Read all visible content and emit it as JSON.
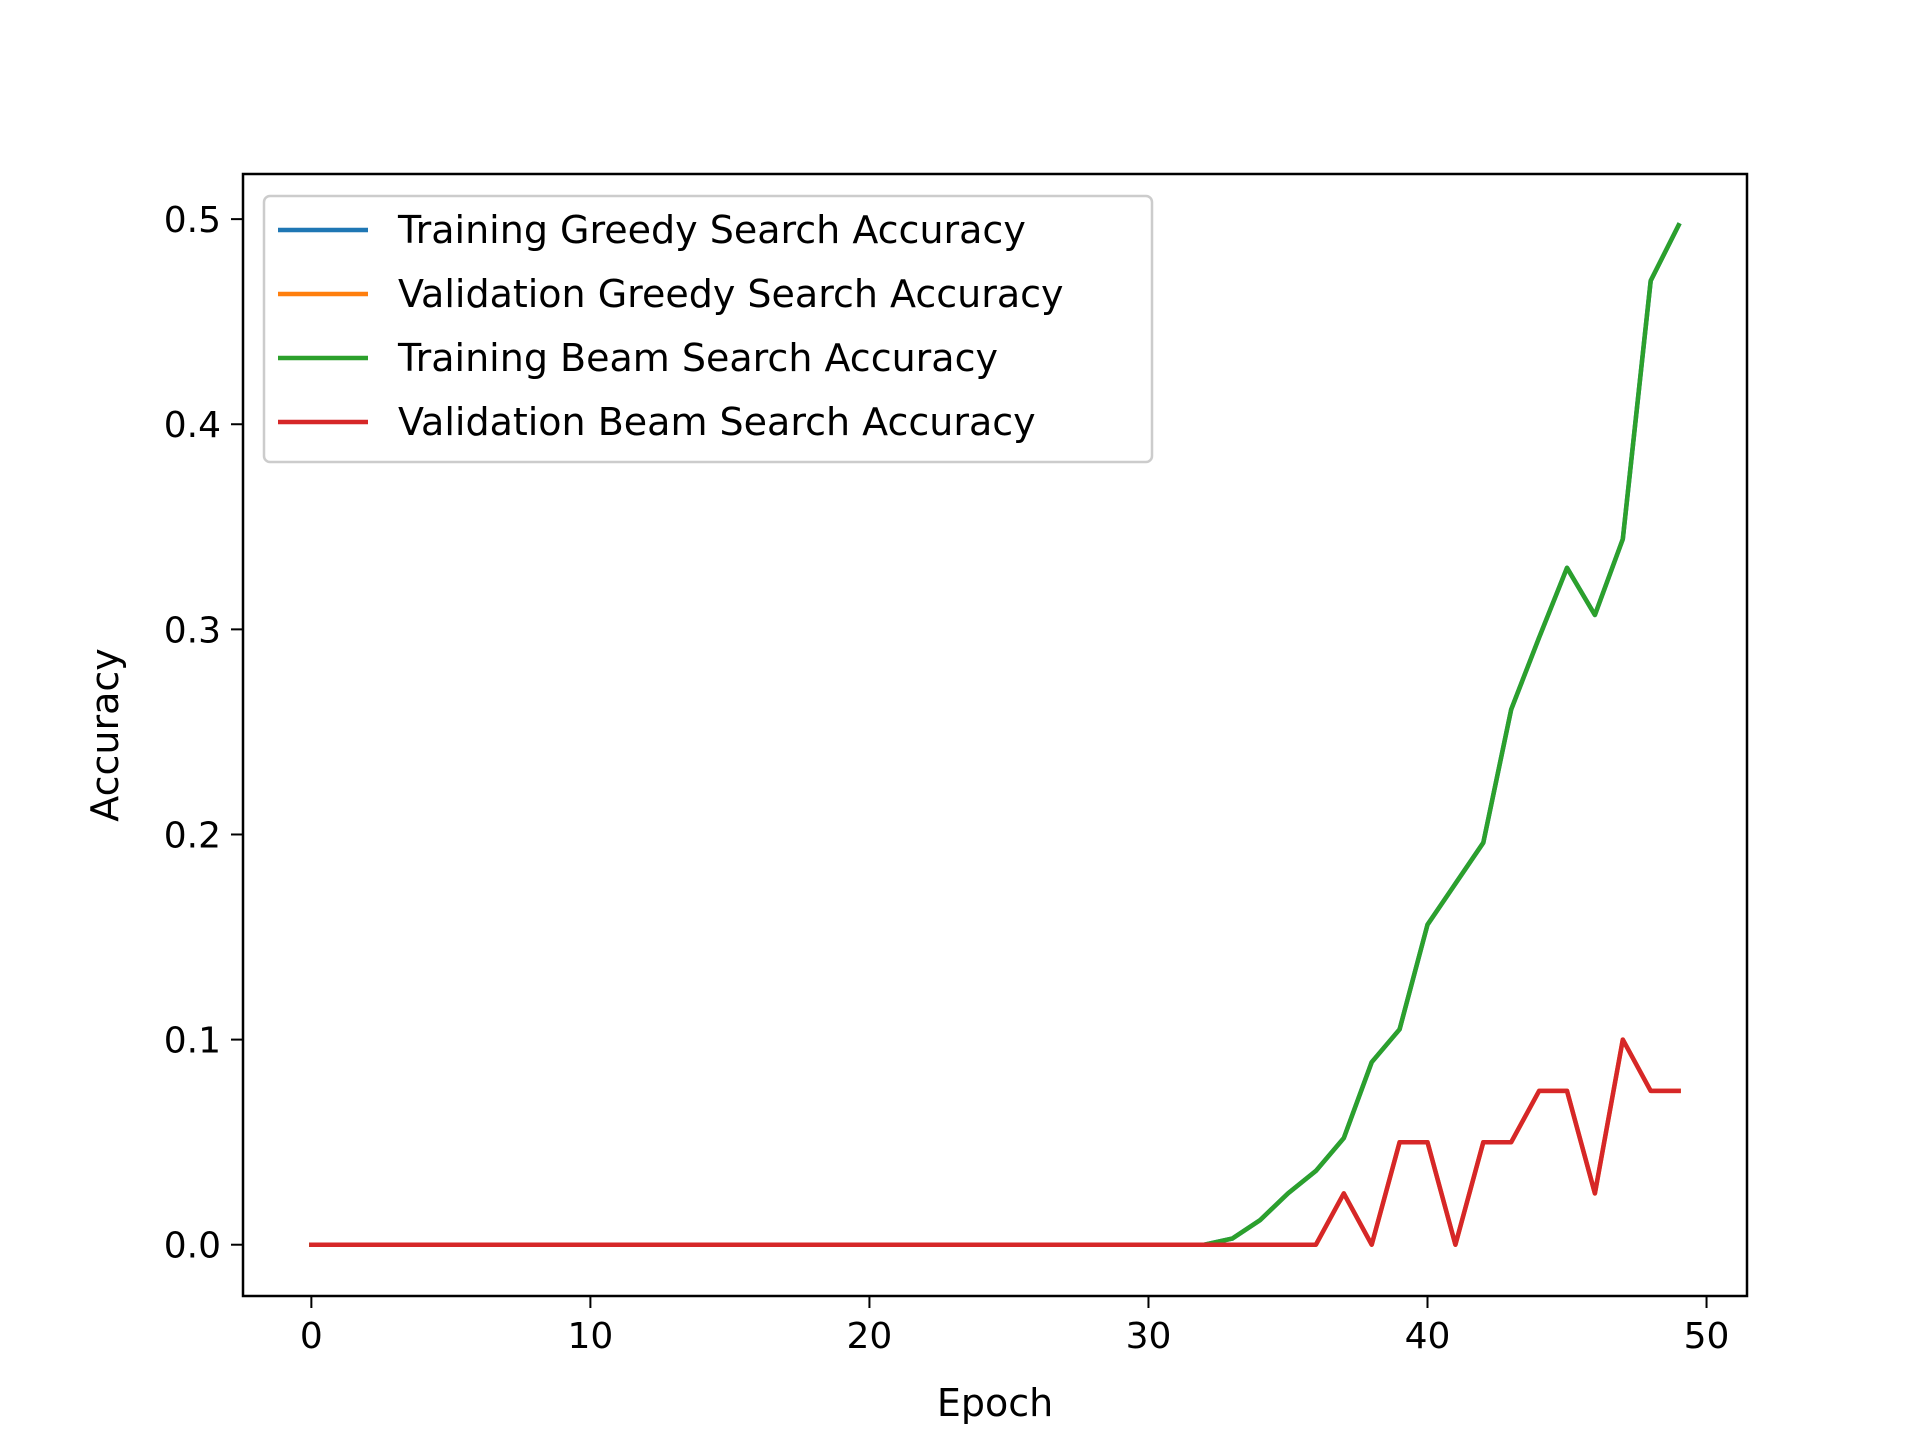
{
  "chart_data": {
    "type": "line",
    "title": "",
    "xlabel": "Epoch",
    "ylabel": "Accuracy",
    "xlim": [
      -2.45,
      51.45
    ],
    "ylim": [
      -0.025,
      0.522
    ],
    "xticks": [
      0,
      10,
      20,
      30,
      40,
      50
    ],
    "yticks": [
      0.0,
      0.1,
      0.2,
      0.3,
      0.4,
      0.5
    ],
    "xtick_labels": [
      "0",
      "10",
      "20",
      "30",
      "40",
      "50"
    ],
    "ytick_labels": [
      "0.0",
      "0.1",
      "0.2",
      "0.3",
      "0.4",
      "0.5"
    ],
    "grid": false,
    "legend_position": "top-left",
    "x": [
      0,
      1,
      2,
      3,
      4,
      5,
      6,
      7,
      8,
      9,
      10,
      11,
      12,
      13,
      14,
      15,
      16,
      17,
      18,
      19,
      20,
      21,
      22,
      23,
      24,
      25,
      26,
      27,
      28,
      29,
      30,
      31,
      32,
      33,
      34,
      35,
      36,
      37,
      38,
      39,
      40,
      41,
      42,
      43,
      44,
      45,
      46,
      47,
      48,
      49
    ],
    "series": [
      {
        "name": "Training Greedy Search Accuracy",
        "color": "#1f77b4",
        "values": [
          0,
          0,
          0,
          0,
          0,
          0,
          0,
          0,
          0,
          0,
          0,
          0,
          0,
          0,
          0,
          0,
          0,
          0,
          0,
          0,
          0,
          0,
          0,
          0,
          0,
          0,
          0,
          0,
          0,
          0,
          0,
          0,
          0,
          0.003,
          0.012,
          0.025,
          0.036,
          0.052,
          0.089,
          0.105,
          0.156,
          0.176,
          0.196,
          0.261,
          0.296,
          0.33,
          0.307,
          0.344,
          0.47,
          0.497
        ]
      },
      {
        "name": "Validation Greedy Search Accuracy",
        "color": "#ff7f0e",
        "values": [
          0,
          0,
          0,
          0,
          0,
          0,
          0,
          0,
          0,
          0,
          0,
          0,
          0,
          0,
          0,
          0,
          0,
          0,
          0,
          0,
          0,
          0,
          0,
          0,
          0,
          0,
          0,
          0,
          0,
          0,
          0,
          0,
          0,
          0,
          0,
          0,
          0,
          0.025,
          0,
          0.05,
          0.05,
          0,
          0.05,
          0.05,
          0.075,
          0.075,
          0.025,
          0.1,
          0.075,
          0.075
        ]
      },
      {
        "name": "Training Beam Search Accuracy",
        "color": "#2ca02c",
        "values": [
          0,
          0,
          0,
          0,
          0,
          0,
          0,
          0,
          0,
          0,
          0,
          0,
          0,
          0,
          0,
          0,
          0,
          0,
          0,
          0,
          0,
          0,
          0,
          0,
          0,
          0,
          0,
          0,
          0,
          0,
          0,
          0,
          0,
          0.003,
          0.012,
          0.025,
          0.036,
          0.052,
          0.089,
          0.105,
          0.156,
          0.176,
          0.196,
          0.261,
          0.296,
          0.33,
          0.307,
          0.344,
          0.47,
          0.497
        ]
      },
      {
        "name": "Validation Beam Search Accuracy",
        "color": "#d62728",
        "values": [
          0,
          0,
          0,
          0,
          0,
          0,
          0,
          0,
          0,
          0,
          0,
          0,
          0,
          0,
          0,
          0,
          0,
          0,
          0,
          0,
          0,
          0,
          0,
          0,
          0,
          0,
          0,
          0,
          0,
          0,
          0,
          0,
          0,
          0,
          0,
          0,
          0,
          0.025,
          0,
          0.05,
          0.05,
          0,
          0.05,
          0.05,
          0.075,
          0.075,
          0.025,
          0.1,
          0.075,
          0.075
        ]
      }
    ]
  }
}
